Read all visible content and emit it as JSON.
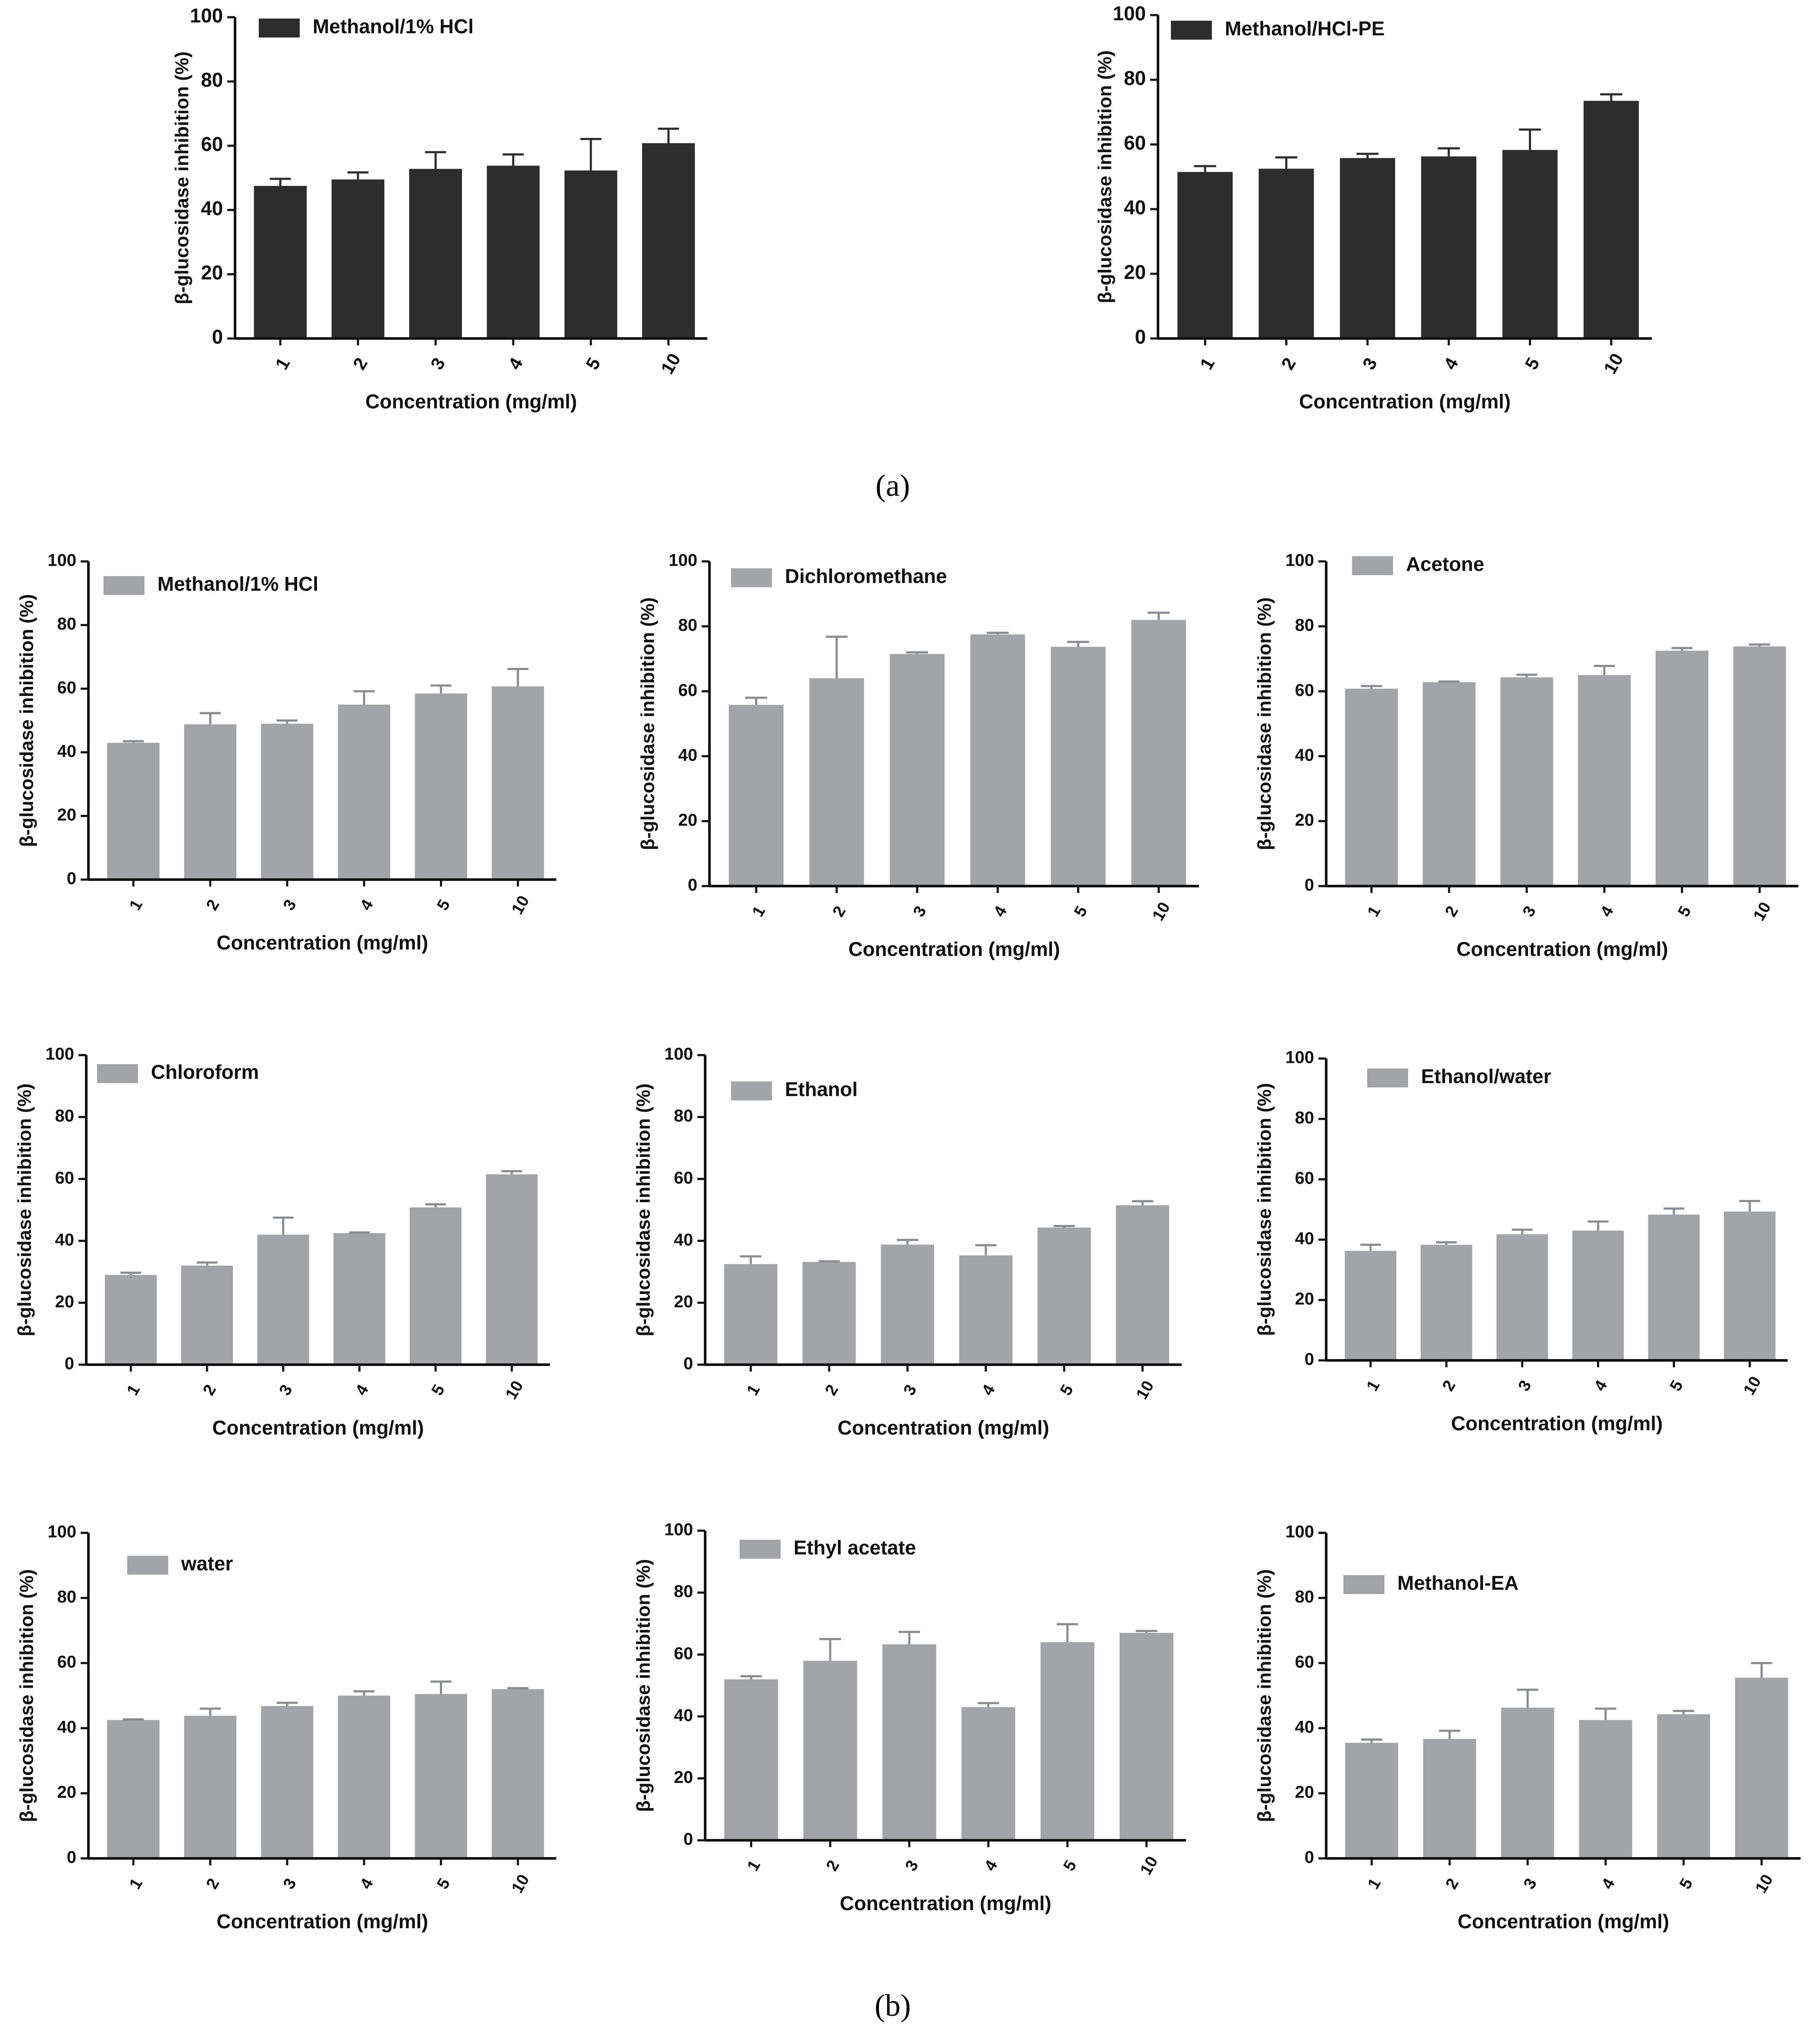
{
  "figure": {
    "caption_a": "(a)",
    "caption_b": "(b)"
  },
  "colors": {
    "dark_bar": "#2d2d2d",
    "light_bar": "#a3a4a8",
    "axis": "#111111"
  },
  "chart_data": [
    {
      "panel": "a",
      "type": "bar",
      "series": [
        {
          "name": "Methanol/1% HCl",
          "values": [
            47.5,
            49.5,
            52.8,
            53.8,
            52.3,
            60.8
          ],
          "errors": [
            2.2,
            2.2,
            5.2,
            3.5,
            9.8,
            4.5
          ]
        }
      ],
      "categories": [
        "1",
        "2",
        "3",
        "4",
        "5",
        "10"
      ],
      "xlabel": "Concentration (mg/ml)",
      "ylabel": "β-glucosidase inhibition (%)",
      "ylim": [
        0,
        100
      ],
      "yticks": [
        "0",
        "20",
        "40",
        "60",
        "80",
        "100"
      ],
      "legend": "top-left",
      "grid": false
    },
    {
      "panel": "a",
      "type": "bar",
      "series": [
        {
          "name": "Methanol/HCl-PE",
          "values": [
            51.5,
            52.5,
            55.8,
            56.3,
            58.3,
            73.5
          ],
          "errors": [
            1.8,
            3.5,
            1.3,
            2.5,
            6.3,
            2.0
          ]
        }
      ],
      "categories": [
        "1",
        "2",
        "3",
        "4",
        "5",
        "10"
      ],
      "xlabel": "Concentration (mg/ml)",
      "ylabel": "β-glucosidase inhibition (%)",
      "ylim": [
        0,
        100
      ],
      "yticks": [
        "0",
        "20",
        "40",
        "60",
        "80",
        "100"
      ],
      "legend": "top-left",
      "grid": false
    },
    {
      "panel": "b",
      "type": "bar",
      "series": [
        {
          "name": "Methanol/1% HCl",
          "values": [
            43.0,
            48.8,
            49.0,
            55.0,
            58.5,
            60.7
          ],
          "errors": [
            0.5,
            3.5,
            1.0,
            4.2,
            2.5,
            5.5
          ]
        }
      ],
      "categories": [
        "1",
        "2",
        "3",
        "4",
        "5",
        "10"
      ],
      "xlabel": "Concentration (mg/ml)",
      "ylabel": "β-glucosidase inhibition (%)",
      "ylim": [
        0,
        100
      ],
      "yticks": [
        "0",
        "20",
        "40",
        "60",
        "80",
        "100"
      ],
      "legend": "top-left",
      "grid": false
    },
    {
      "panel": "b",
      "type": "bar",
      "series": [
        {
          "name": "Dichloromethane",
          "values": [
            55.8,
            64.0,
            71.5,
            77.5,
            73.7,
            82.0
          ],
          "errors": [
            2.2,
            12.8,
            0.5,
            0.5,
            1.5,
            2.2
          ]
        }
      ],
      "categories": [
        "1",
        "2",
        "3",
        "4",
        "5",
        "10"
      ],
      "xlabel": "Concentration (mg/ml)",
      "ylabel": "β-glucosidase inhibition (%)",
      "ylim": [
        0,
        100
      ],
      "yticks": [
        "0",
        "20",
        "40",
        "60",
        "80",
        "100"
      ],
      "legend": "top-left",
      "grid": false
    },
    {
      "panel": "b",
      "type": "bar",
      "series": [
        {
          "name": "Acetone",
          "values": [
            60.8,
            62.8,
            64.3,
            65.0,
            72.5,
            73.8
          ],
          "errors": [
            0.8,
            0.2,
            0.8,
            2.8,
            0.8,
            0.6
          ]
        }
      ],
      "categories": [
        "1",
        "2",
        "3",
        "4",
        "5",
        "10"
      ],
      "xlabel": "Concentration (mg/ml)",
      "ylabel": "β-glucosidase inhibition (%)",
      "ylim": [
        0,
        100
      ],
      "yticks": [
        "0",
        "20",
        "40",
        "60",
        "80",
        "100"
      ],
      "legend": "top-left",
      "grid": false
    },
    {
      "panel": "b",
      "type": "bar",
      "series": [
        {
          "name": "Chloroform",
          "values": [
            29.0,
            32.0,
            42.0,
            42.5,
            50.8,
            61.5
          ],
          "errors": [
            0.7,
            1.0,
            5.5,
            0.2,
            1.0,
            1.0
          ]
        }
      ],
      "categories": [
        "1",
        "2",
        "3",
        "4",
        "5",
        "10"
      ],
      "xlabel": "Concentration (mg/ml)",
      "ylabel": "β-glucosidase inhibition (%)",
      "ylim": [
        0,
        100
      ],
      "yticks": [
        "0",
        "20",
        "40",
        "60",
        "80",
        "100"
      ],
      "legend": "top-left",
      "grid": false
    },
    {
      "panel": "b",
      "type": "bar",
      "series": [
        {
          "name": "Ethanol",
          "values": [
            32.5,
            33.2,
            38.8,
            35.3,
            44.3,
            51.5
          ],
          "errors": [
            2.5,
            0.2,
            1.5,
            3.3,
            0.5,
            1.3
          ]
        }
      ],
      "categories": [
        "1",
        "2",
        "3",
        "4",
        "5",
        "10"
      ],
      "xlabel": "Concentration (mg/ml)",
      "ylabel": "β-glucosidase inhibition (%)",
      "ylim": [
        0,
        100
      ],
      "yticks": [
        "0",
        "20",
        "40",
        "60",
        "80",
        "100"
      ],
      "legend": "top-left",
      "grid": false
    },
    {
      "panel": "b",
      "type": "bar",
      "series": [
        {
          "name": "Ethanol/water",
          "values": [
            36.3,
            38.3,
            41.8,
            43.0,
            48.3,
            49.3
          ],
          "errors": [
            2.0,
            0.8,
            1.5,
            3.0,
            2.0,
            3.5
          ]
        }
      ],
      "categories": [
        "1",
        "2",
        "3",
        "4",
        "5",
        "10"
      ],
      "xlabel": "Concentration (mg/ml)",
      "ylabel": "β-glucosidase inhibition (%)",
      "ylim": [
        0,
        100
      ],
      "yticks": [
        "0",
        "20",
        "40",
        "60",
        "80",
        "100"
      ],
      "legend": "top-left",
      "grid": false
    },
    {
      "panel": "b",
      "type": "bar",
      "series": [
        {
          "name": "water",
          "values": [
            42.5,
            43.8,
            46.8,
            50.0,
            50.5,
            52.0
          ],
          "errors": [
            0.2,
            2.2,
            1.0,
            1.3,
            3.8,
            0.3
          ]
        }
      ],
      "categories": [
        "1",
        "2",
        "3",
        "4",
        "5",
        "10"
      ],
      "xlabel": "Concentration (mg/ml)",
      "ylabel": "β-glucosidase inhibition (%)",
      "ylim": [
        0,
        100
      ],
      "yticks": [
        "0",
        "20",
        "40",
        "60",
        "80",
        "100"
      ],
      "legend": "top-left",
      "grid": false
    },
    {
      "panel": "b",
      "type": "bar",
      "series": [
        {
          "name": "Ethyl acetate",
          "values": [
            52.0,
            58.0,
            63.3,
            43.0,
            64.0,
            67.0
          ],
          "errors": [
            1.0,
            7.0,
            4.0,
            1.3,
            5.8,
            0.6
          ]
        }
      ],
      "categories": [
        "1",
        "2",
        "3",
        "4",
        "5",
        "10"
      ],
      "xlabel": "Concentration (mg/ml)",
      "ylabel": "β-glucosidase inhibition (%)",
      "ylim": [
        0,
        100
      ],
      "yticks": [
        "0",
        "20",
        "40",
        "60",
        "80",
        "100"
      ],
      "legend": "top-left",
      "grid": false
    },
    {
      "panel": "b",
      "type": "bar",
      "series": [
        {
          "name": "Methanol-EA",
          "values": [
            35.5,
            36.7,
            46.3,
            42.5,
            44.3,
            55.5
          ],
          "errors": [
            1.0,
            2.5,
            5.5,
            3.5,
            1.0,
            4.5
          ]
        }
      ],
      "categories": [
        "1",
        "2",
        "3",
        "4",
        "5",
        "10"
      ],
      "xlabel": "Concentration (mg/ml)",
      "ylabel": "β-glucosidase inhibition (%)",
      "ylim": [
        0,
        100
      ],
      "yticks": [
        "0",
        "20",
        "40",
        "60",
        "80",
        "100"
      ],
      "legend": "top-left",
      "grid": false
    }
  ]
}
